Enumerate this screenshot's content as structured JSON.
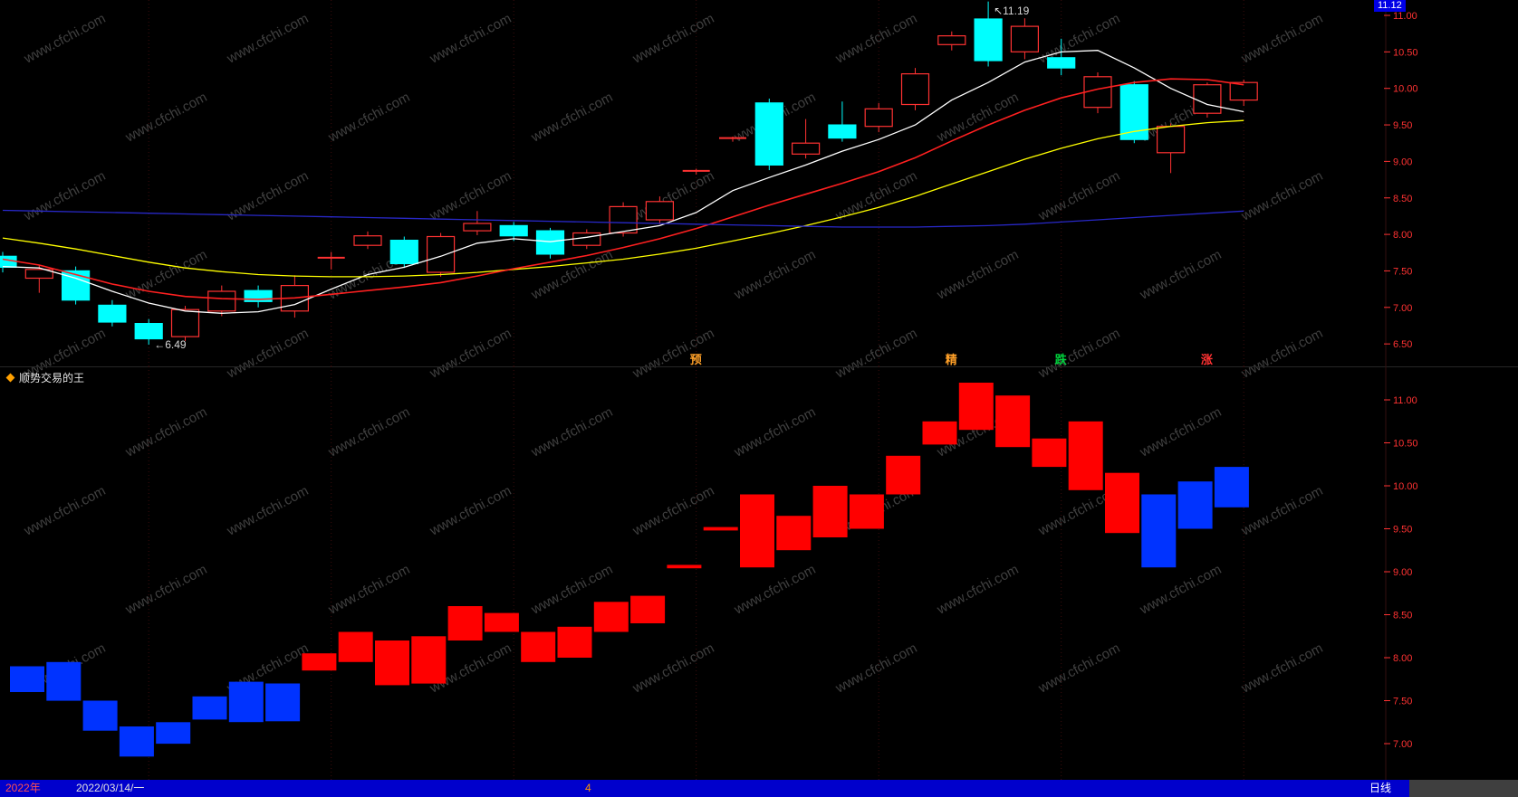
{
  "app": {
    "corner_price": "11.12",
    "watermark": "www.cfchi.com",
    "status_bar": {
      "year": "2022年",
      "date": "2022/03/14/一",
      "month_marker": "4",
      "period": "日线"
    }
  },
  "indicator": {
    "title": "顺势交易的王"
  },
  "colors": {
    "background": "#000000",
    "up": "#ff3232",
    "down": "#00ffff",
    "bar_up": "#ff0000",
    "bar_down": "#0033ff",
    "axis_text": "#ff3232",
    "watermark": "#404040",
    "grid": "#3c0d0d",
    "statusbar_bg": "#0000cc",
    "price_tag_bg": "#0000e6"
  },
  "chart_data": [
    {
      "type": "candlestick",
      "panel": "main",
      "y_axis": {
        "min": 6.49,
        "max": 11.19,
        "ticks": [
          11.0,
          10.5,
          10.0,
          9.5,
          9.0,
          8.5,
          8.0,
          7.5,
          7.0,
          6.5
        ]
      },
      "candles_format": [
        "open",
        "high",
        "low",
        "close"
      ],
      "candles": [
        [
          7.7,
          7.76,
          7.48,
          7.55
        ],
        [
          7.4,
          7.58,
          7.2,
          7.52
        ],
        [
          7.5,
          7.56,
          7.04,
          7.1
        ],
        [
          7.03,
          7.1,
          6.74,
          6.8
        ],
        [
          6.78,
          6.84,
          6.49,
          6.57
        ],
        [
          6.6,
          7.02,
          6.54,
          6.97
        ],
        [
          6.95,
          7.3,
          6.88,
          7.22
        ],
        [
          7.23,
          7.3,
          7.0,
          7.08
        ],
        [
          6.95,
          7.44,
          6.86,
          7.3
        ],
        [
          7.66,
          7.76,
          7.52,
          7.68
        ],
        [
          7.85,
          8.04,
          7.8,
          7.98
        ],
        [
          7.92,
          7.97,
          7.54,
          7.6
        ],
        [
          7.48,
          8.02,
          7.42,
          7.97
        ],
        [
          8.05,
          8.32,
          7.99,
          8.15
        ],
        [
          8.12,
          8.17,
          7.91,
          7.98
        ],
        [
          8.05,
          8.09,
          7.67,
          7.73
        ],
        [
          7.85,
          8.07,
          7.8,
          8.02
        ],
        [
          8.02,
          8.44,
          7.97,
          8.38
        ],
        [
          8.2,
          8.52,
          8.14,
          8.45
        ],
        [
          8.86,
          8.9,
          8.82,
          8.87
        ],
        [
          9.31,
          9.34,
          9.27,
          9.32
        ],
        [
          9.8,
          9.86,
          8.88,
          8.95
        ],
        [
          9.1,
          9.58,
          9.04,
          9.25
        ],
        [
          9.5,
          9.82,
          9.27,
          9.32
        ],
        [
          9.48,
          9.8,
          9.4,
          9.72
        ],
        [
          9.78,
          10.28,
          9.7,
          10.2
        ],
        [
          10.6,
          10.78,
          10.52,
          10.72
        ],
        [
          10.95,
          11.19,
          10.3,
          10.38
        ],
        [
          10.5,
          10.96,
          10.4,
          10.85
        ],
        [
          10.42,
          10.68,
          10.18,
          10.28
        ],
        [
          9.74,
          10.22,
          9.66,
          10.16
        ],
        [
          10.05,
          10.1,
          9.25,
          9.3
        ],
        [
          9.12,
          9.52,
          8.84,
          9.48
        ],
        [
          9.66,
          10.08,
          9.6,
          10.05
        ],
        [
          9.84,
          10.12,
          9.76,
          10.08
        ]
      ],
      "ma_series": [
        {
          "name": "ma-white",
          "color": "#ffffff",
          "width": 1.3,
          "values": [
            7.56,
            7.54,
            7.4,
            7.22,
            7.06,
            6.95,
            6.92,
            6.94,
            7.04,
            7.25,
            7.45,
            7.55,
            7.7,
            7.88,
            7.94,
            7.9,
            7.96,
            8.04,
            8.12,
            8.3,
            8.6,
            8.78,
            8.95,
            9.14,
            9.3,
            9.5,
            9.84,
            10.08,
            10.36,
            10.5,
            10.52,
            10.28,
            10.0,
            9.78,
            9.68
          ]
        },
        {
          "name": "ma-yellow",
          "color": "#ffff00",
          "width": 1.3,
          "values": [
            7.95,
            7.88,
            7.8,
            7.71,
            7.62,
            7.54,
            7.49,
            7.45,
            7.43,
            7.42,
            7.42,
            7.43,
            7.45,
            7.48,
            7.52,
            7.56,
            7.61,
            7.66,
            7.73,
            7.81,
            7.91,
            8.01,
            8.12,
            8.24,
            8.37,
            8.52,
            8.69,
            8.86,
            9.03,
            9.18,
            9.31,
            9.41,
            9.48,
            9.53,
            9.56
          ]
        },
        {
          "name": "ma-red",
          "color": "#ff2020",
          "width": 1.6,
          "values": [
            7.66,
            7.58,
            7.45,
            7.32,
            7.22,
            7.15,
            7.12,
            7.11,
            7.13,
            7.18,
            7.23,
            7.28,
            7.34,
            7.43,
            7.53,
            7.62,
            7.71,
            7.82,
            7.94,
            8.08,
            8.24,
            8.4,
            8.55,
            8.7,
            8.86,
            9.05,
            9.28,
            9.5,
            9.7,
            9.87,
            9.99,
            10.08,
            10.13,
            10.12,
            10.05
          ]
        },
        {
          "name": "ma-blue",
          "color": "#2828c8",
          "width": 1.3,
          "values": [
            8.33,
            8.32,
            8.31,
            8.3,
            8.29,
            8.28,
            8.27,
            8.26,
            8.25,
            8.24,
            8.23,
            8.22,
            8.21,
            8.2,
            8.19,
            8.18,
            8.17,
            8.16,
            8.15,
            8.14,
            8.13,
            8.12,
            8.11,
            8.1,
            8.1,
            8.1,
            8.11,
            8.12,
            8.14,
            8.17,
            8.2,
            8.23,
            8.26,
            8.29,
            8.32
          ]
        }
      ],
      "annotations": [
        {
          "name": "low-price-annotation",
          "text": "←6.49",
          "candle": 5,
          "price": 6.44
        },
        {
          "name": "high-price-annotation",
          "text": "↖11.19",
          "candle": 28,
          "price": 11.01
        }
      ],
      "signals": [
        {
          "key": "yu",
          "text": "预",
          "candle": 20,
          "color": "#ffa028"
        },
        {
          "key": "jing",
          "text": "精",
          "candle": 27,
          "color": "#ffa028"
        },
        {
          "key": "die",
          "text": "跌",
          "candle": 30,
          "color": "#00d23c"
        },
        {
          "key": "zhang",
          "text": "涨",
          "candle": 34,
          "color": "#ff3232"
        }
      ]
    },
    {
      "type": "bar",
      "panel": "indicator",
      "title": "顺势交易的王",
      "y_axis": {
        "min": 6.85,
        "max": 11.2,
        "ticks": [
          11.0,
          10.5,
          10.0,
          9.5,
          9.0,
          8.5,
          8.0,
          7.5,
          7.0
        ]
      },
      "bars_format": [
        "value_top",
        "value_bottom",
        "trend"
      ],
      "bars": [
        [
          7.9,
          7.6,
          "down"
        ],
        [
          7.95,
          7.5,
          "down"
        ],
        [
          7.5,
          7.15,
          "down"
        ],
        [
          7.2,
          6.85,
          "down"
        ],
        [
          7.25,
          7.0,
          "down"
        ],
        [
          7.55,
          7.28,
          "down"
        ],
        [
          7.72,
          7.25,
          "down"
        ],
        [
          7.7,
          7.26,
          "down"
        ],
        [
          8.05,
          7.85,
          "up"
        ],
        [
          8.3,
          7.95,
          "up"
        ],
        [
          8.2,
          7.68,
          "up"
        ],
        [
          8.25,
          7.7,
          "up"
        ],
        [
          8.6,
          8.2,
          "up"
        ],
        [
          8.52,
          8.3,
          "up"
        ],
        [
          8.3,
          7.95,
          "up"
        ],
        [
          8.36,
          8.0,
          "up"
        ],
        [
          8.65,
          8.3,
          "up"
        ],
        [
          8.72,
          8.4,
          "up"
        ],
        [
          9.08,
          9.04,
          "up"
        ],
        [
          9.52,
          9.48,
          "up"
        ],
        [
          9.9,
          9.05,
          "up"
        ],
        [
          9.65,
          9.25,
          "up"
        ],
        [
          10.0,
          9.4,
          "up"
        ],
        [
          9.9,
          9.5,
          "up"
        ],
        [
          10.35,
          9.9,
          "up"
        ],
        [
          10.75,
          10.48,
          "up"
        ],
        [
          11.2,
          10.65,
          "up"
        ],
        [
          11.05,
          10.45,
          "up"
        ],
        [
          10.55,
          10.22,
          "up"
        ],
        [
          10.75,
          9.95,
          "up"
        ],
        [
          10.15,
          9.45,
          "up"
        ],
        [
          9.9,
          9.05,
          "down"
        ],
        [
          10.05,
          9.5,
          "down"
        ],
        [
          10.22,
          9.75,
          "down"
        ]
      ]
    }
  ]
}
